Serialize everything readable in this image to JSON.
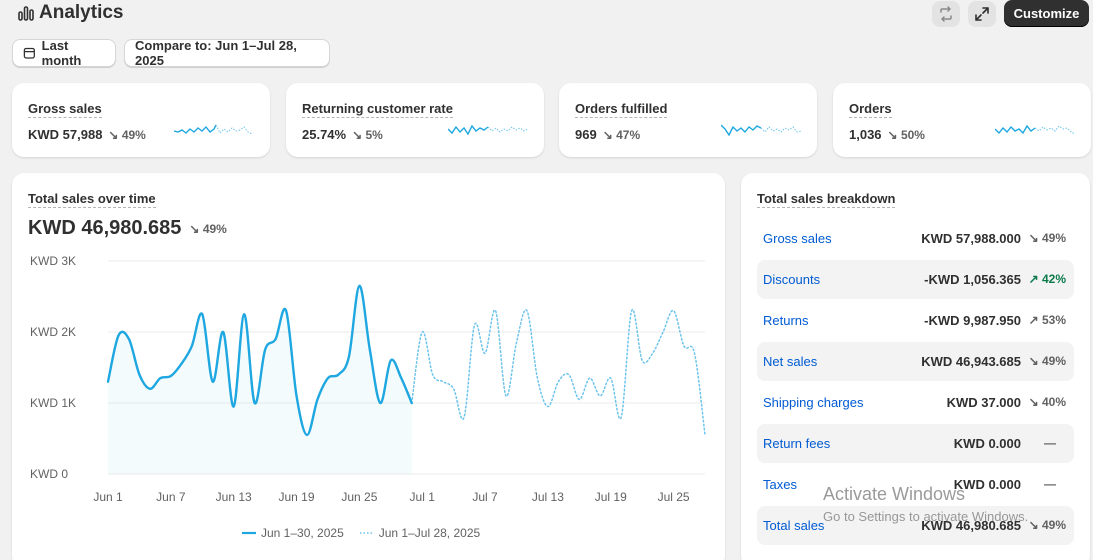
{
  "header": {
    "title": "Analytics",
    "icons": [
      "bar-chart-icon",
      "refresh-icon",
      "expand-icon"
    ],
    "customize_label": "Customize"
  },
  "filters": {
    "date_label": "Last month",
    "compare_label": "Compare to: Jun 1–Jul 28, 2025"
  },
  "metrics": [
    {
      "label": "Gross sales",
      "value": "KWD 57,988",
      "change": "49%",
      "direction": "down"
    },
    {
      "label": "Returning customer rate",
      "value": "25.74%",
      "change": "5%",
      "direction": "down"
    },
    {
      "label": "Orders fulfilled",
      "value": "969",
      "change": "47%",
      "direction": "down"
    },
    {
      "label": "Orders",
      "value": "1,036",
      "change": "50%",
      "direction": "down"
    }
  ],
  "sales_over_time": {
    "label": "Total sales over time",
    "value": "KWD 46,980.685",
    "change": "49%",
    "direction": "down"
  },
  "chart_data": {
    "type": "line",
    "y_ticks": [
      "KWD 3K",
      "KWD 2K",
      "KWD 1K",
      "KWD 0"
    ],
    "x_ticks": [
      "Jun 1",
      "Jun 7",
      "Jun 13",
      "Jun 19",
      "Jun 25",
      "Jul 1",
      "Jul 7",
      "Jul 13",
      "Jul 19",
      "Jul 25"
    ],
    "ylim": [
      0,
      3000
    ],
    "series": [
      {
        "name": "Jun 1–30, 2025",
        "style": "solid",
        "color": "#1ea7e0",
        "x": [
          "Jun 1",
          "Jun 2",
          "Jun 3",
          "Jun 4",
          "Jun 5",
          "Jun 6",
          "Jun 7",
          "Jun 8",
          "Jun 9",
          "Jun 10",
          "Jun 11",
          "Jun 12",
          "Jun 13",
          "Jun 14",
          "Jun 15",
          "Jun 16",
          "Jun 17",
          "Jun 18",
          "Jun 19",
          "Jun 20",
          "Jun 21",
          "Jun 22",
          "Jun 23",
          "Jun 24",
          "Jun 25",
          "Jun 26",
          "Jun 27",
          "Jun 28",
          "Jun 29",
          "Jun 30"
        ],
        "values": [
          1300,
          1950,
          1900,
          1400,
          1200,
          1350,
          1380,
          1550,
          1800,
          2250,
          1300,
          2000,
          950,
          2250,
          1000,
          1750,
          1900,
          2300,
          1100,
          550,
          1050,
          1350,
          1400,
          1650,
          2650,
          1750,
          1000,
          1600,
          1350,
          1000
        ]
      },
      {
        "name": "Jun 1–Jul 28, 2025",
        "style": "dotted",
        "color": "#6cc3ec",
        "x": [
          "Jun 1",
          "Jun 2",
          "Jun 3",
          "Jun 4",
          "Jun 5",
          "Jun 6",
          "Jun 7",
          "Jun 8",
          "Jun 9",
          "Jun 10",
          "Jun 11",
          "Jun 12",
          "Jun 13",
          "Jun 14",
          "Jun 15",
          "Jun 16",
          "Jun 17",
          "Jun 18",
          "Jun 19",
          "Jun 20",
          "Jun 21",
          "Jun 22",
          "Jun 23",
          "Jun 24",
          "Jun 25",
          "Jun 26",
          "Jun 27",
          "Jun 28",
          "Jun 29",
          "Jun 30",
          "Jul 1",
          "Jul 2",
          "Jul 3",
          "Jul 4",
          "Jul 5",
          "Jul 6",
          "Jul 7",
          "Jul 8",
          "Jul 9",
          "Jul 10",
          "Jul 11",
          "Jul 12",
          "Jul 13",
          "Jul 14",
          "Jul 15",
          "Jul 16",
          "Jul 17",
          "Jul 18",
          "Jul 19",
          "Jul 20",
          "Jul 21",
          "Jul 22",
          "Jul 23",
          "Jul 24",
          "Jul 25",
          "Jul 26",
          "Jul 27",
          "Jul 28"
        ],
        "values": [
          1300,
          1950,
          1900,
          1400,
          1200,
          1350,
          1380,
          1550,
          1800,
          2250,
          1300,
          2000,
          950,
          2250,
          1000,
          1750,
          1900,
          2300,
          1100,
          550,
          1050,
          1350,
          1400,
          1650,
          2650,
          1750,
          1000,
          1600,
          1350,
          1000,
          2000,
          1400,
          1300,
          1200,
          800,
          2100,
          1700,
          2300,
          1100,
          1850,
          2300,
          1350,
          950,
          1300,
          1400,
          1050,
          1350,
          1100,
          1350,
          800,
          2300,
          1600,
          1700,
          2000,
          2300,
          1800,
          1700,
          550
        ]
      }
    ],
    "legend_position": "bottom",
    "grid": true
  },
  "breakdown": {
    "label": "Total sales breakdown",
    "rows": [
      {
        "name": "Gross sales",
        "value": "KWD 57,988.000",
        "change": "49%",
        "direction": "down"
      },
      {
        "name": "Discounts",
        "value": "-KWD 1,056.365",
        "change": "42%",
        "direction": "up"
      },
      {
        "name": "Returns",
        "value": "-KWD 9,987.950",
        "change": "53%",
        "direction": "up"
      },
      {
        "name": "Net sales",
        "value": "KWD 46,943.685",
        "change": "49%",
        "direction": "down"
      },
      {
        "name": "Shipping charges",
        "value": "KWD 37.000",
        "change": "40%",
        "direction": "down"
      },
      {
        "name": "Return fees",
        "value": "KWD 0.000",
        "change": "—",
        "direction": "none"
      },
      {
        "name": "Taxes",
        "value": "KWD 0.000",
        "change": "—",
        "direction": "none"
      },
      {
        "name": "Total sales",
        "value": "KWD 46,980.685",
        "change": "49%",
        "direction": "down"
      }
    ]
  },
  "watermark": {
    "line1": "Activate Windows",
    "line2": "Go to Settings to activate Windows."
  },
  "colors": {
    "accent_line": "#1ea7e0",
    "link_blue": "#005bd3",
    "positive_green": "#0a7a4b",
    "dark_button": "#303030"
  }
}
